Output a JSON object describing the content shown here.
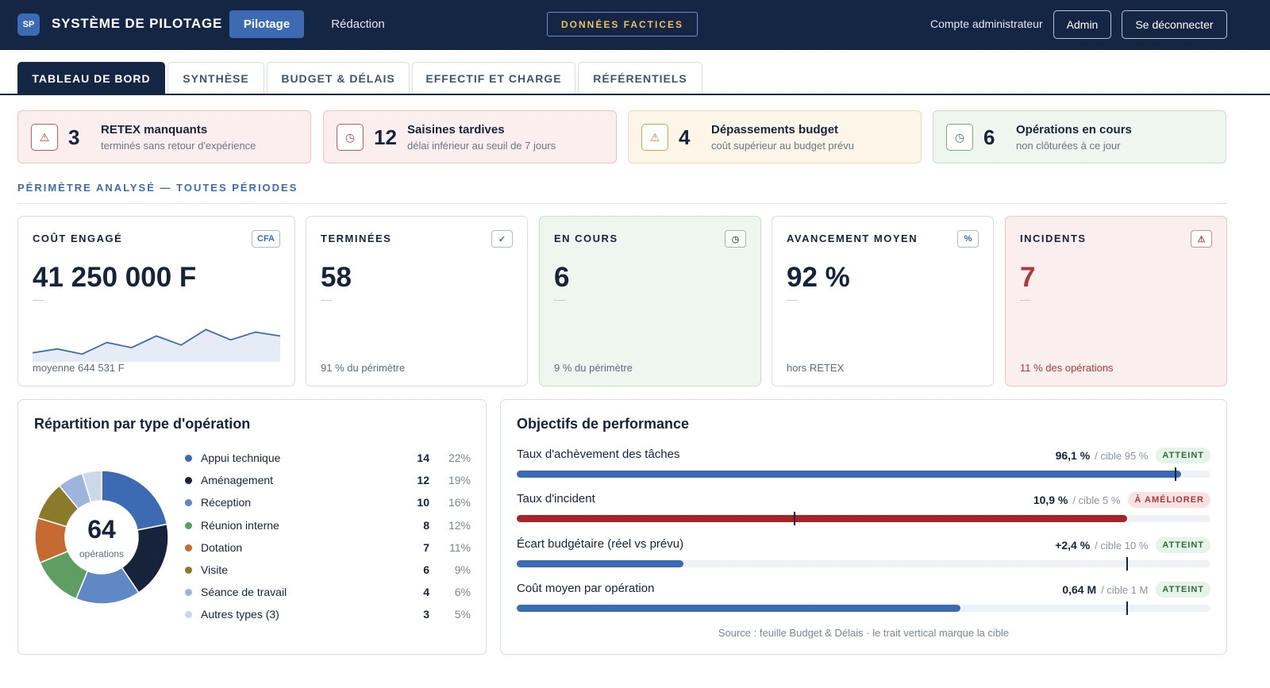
{
  "header": {
    "logo": "SP",
    "title": "SYSTÈME DE PILOTAGE",
    "nav": [
      {
        "label": "Pilotage",
        "active": true
      },
      {
        "label": "Rédaction",
        "active": false
      }
    ],
    "badge": "DONNÉES FACTICES",
    "account_label": "Compte administrateur",
    "admin_button": "Admin",
    "logout_button": "Se déconnecter"
  },
  "tabs": [
    {
      "label": "TABLEAU DE BORD",
      "active": true
    },
    {
      "label": "SYNTHÈSE",
      "active": false
    },
    {
      "label": "BUDGET & DÉLAIS",
      "active": false
    },
    {
      "label": "EFFECTIF ET CHARGE",
      "active": false
    },
    {
      "label": "RÉFÉRENTIELS",
      "active": false
    }
  ],
  "alerts": [
    {
      "count": "3",
      "title": "RETEX manquants",
      "subtitle": "terminés sans retour d'expérience",
      "icon": "warning-icon",
      "glyph": "⚠",
      "tone": "red"
    },
    {
      "count": "12",
      "title": "Saisines tardives",
      "subtitle": "délai inférieur au seuil de 7 jours",
      "icon": "clock-icon",
      "glyph": "◷",
      "tone": "red"
    },
    {
      "count": "4",
      "title": "Dépassements budget",
      "subtitle": "coût supérieur au budget prévu",
      "icon": "warning-icon",
      "glyph": "⚠",
      "tone": "amber"
    },
    {
      "count": "6",
      "title": "Opérations en cours",
      "subtitle": "non clôturées à ce jour",
      "icon": "clock-icon",
      "glyph": "◷",
      "tone": "green"
    }
  ],
  "section_label": "PÉRIMÈTRE ANALYSÉ — TOUTES PÉRIODES",
  "kpis": [
    {
      "label": "COÛT ENGAGÉ",
      "badge": "CFA",
      "value": "41 250 000 F",
      "dash": "—",
      "foot": "moyenne 644 531 F",
      "tone": "default"
    },
    {
      "label": "TERMINÉES",
      "badge": "✓",
      "value": "58",
      "dash": "—",
      "foot": "91 % du périmètre",
      "tone": "default"
    },
    {
      "label": "EN COURS",
      "badge": "◷",
      "value": "6",
      "dash": "—",
      "foot": "9 % du périmètre",
      "tone": "green"
    },
    {
      "label": "AVANCEMENT MOYEN",
      "badge": "%",
      "value": "92 %",
      "dash": "—",
      "foot": "hors RETEX",
      "tone": "default"
    },
    {
      "label": "INCIDENTS",
      "badge": "⚠",
      "value": "7",
      "dash": "—",
      "foot": "11 % des opérations",
      "tone": "red"
    }
  ],
  "sparkline": {
    "values": [
      22,
      25,
      21,
      30,
      26,
      35,
      28,
      40,
      32,
      38,
      35
    ],
    "color": "#3d6bb3",
    "fill": "#e6ecf6"
  },
  "distribution": {
    "title": "Répartition par type d'opération",
    "total": "64",
    "total_label": "opérations",
    "items": [
      {
        "label": "Appui technique",
        "count": 14,
        "pct": "22%",
        "color": "#3d6bb3"
      },
      {
        "label": "Aménagement",
        "count": 12,
        "pct": "19%",
        "color": "#16233a"
      },
      {
        "label": "Réception",
        "count": 10,
        "pct": "16%",
        "color": "#6088c6"
      },
      {
        "label": "Réunion interne",
        "count": 8,
        "pct": "12%",
        "color": "#5e9e62"
      },
      {
        "label": "Dotation",
        "count": 7,
        "pct": "11%",
        "color": "#c56b32"
      },
      {
        "label": "Visite",
        "count": 6,
        "pct": "9%",
        "color": "#8a7a2a"
      },
      {
        "label": "Séance de travail",
        "count": 4,
        "pct": "6%",
        "color": "#9db5dc"
      },
      {
        "label": "Autres types (3)",
        "count": 3,
        "pct": "5%",
        "color": "#cdd8ea"
      }
    ]
  },
  "objectives": {
    "title": "Objectifs de performance",
    "items": [
      {
        "label": "Taux d'achèvement des tâches",
        "value": "96,1 %",
        "target": "/ cible 95 %",
        "status": "ATTEINT",
        "ok": true,
        "fill": 0.958,
        "marker": 0.95,
        "color": "#3d6bb3"
      },
      {
        "label": "Taux d'incident",
        "value": "10,9 %",
        "target": "/ cible 5 %",
        "status": "À AMÉLIORER",
        "ok": false,
        "fill": 0.88,
        "marker": 0.4,
        "color": "#a82323"
      },
      {
        "label": "Écart budgétaire (réel vs prévu)",
        "value": "+2,4 %",
        "target": "/ cible 10 %",
        "status": "ATTEINT",
        "ok": true,
        "fill": 0.24,
        "marker": 0.88,
        "color": "#3d6bb3"
      },
      {
        "label": "Coût moyen par opération",
        "value": "0,64 M",
        "target": "/ cible 1 M",
        "status": "ATTEINT",
        "ok": true,
        "fill": 0.64,
        "marker": 0.88,
        "color": "#3d6bb3"
      }
    ],
    "source": "Source : feuille Budget & Délais · le trait vertical marque la cible"
  }
}
